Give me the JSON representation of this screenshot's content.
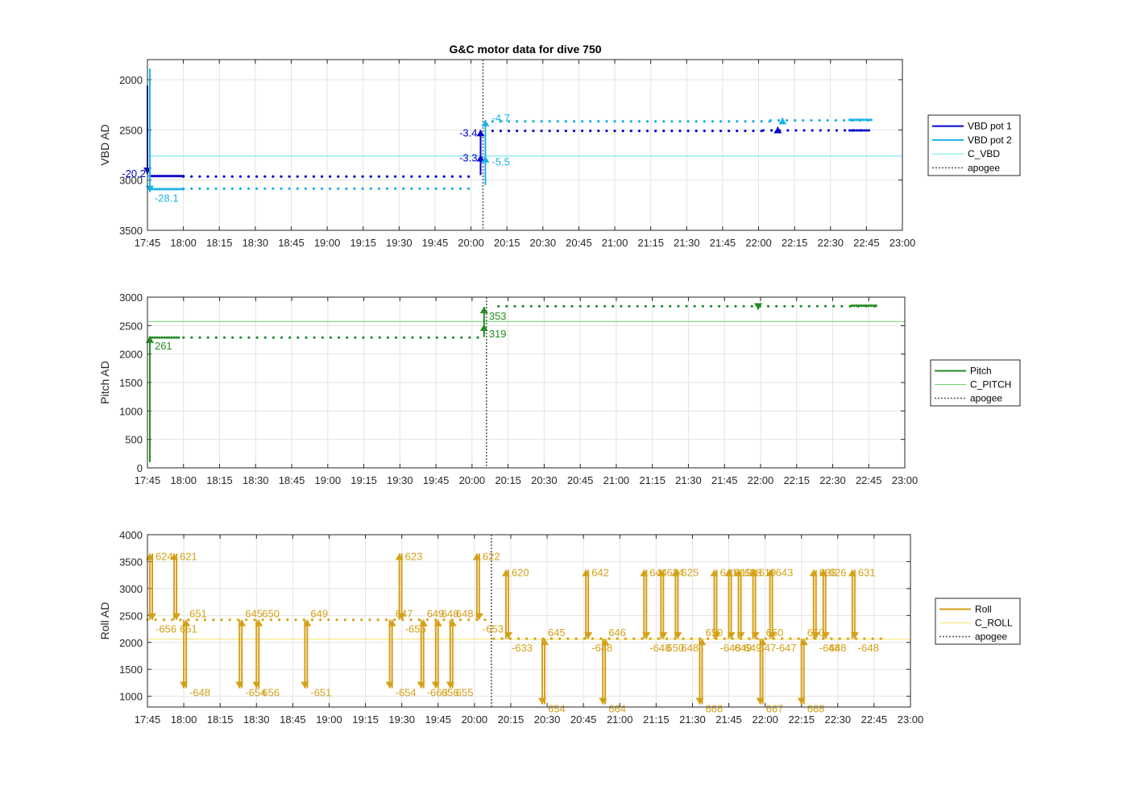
{
  "chart_data": [
    {
      "type": "line",
      "title": "G&C motor data for dive 750",
      "ylabel": "VBD AD",
      "xlabel": "",
      "x_unit": "time (HH:MM)",
      "xlim": [
        "17:45",
        "23:00"
      ],
      "ylim": [
        3500,
        1800
      ],
      "y_reversed": true,
      "y_ticks": [
        2000,
        2500,
        3000,
        3500
      ],
      "x_ticks": [
        "17:45",
        "18:00",
        "18:15",
        "18:30",
        "18:45",
        "19:00",
        "19:15",
        "19:30",
        "19:45",
        "20:00",
        "20:15",
        "20:30",
        "20:45",
        "21:00",
        "21:15",
        "21:30",
        "21:45",
        "22:00",
        "22:15",
        "22:30",
        "22:45",
        "23:00"
      ],
      "grid": true,
      "legend_position": "right",
      "legend": [
        "VBD pot 1",
        "VBD pot 2",
        "C_VBD",
        "apogee"
      ],
      "colors": {
        "pot1": "#0000cc",
        "pot2": "#1ab2e6",
        "c_line": "#66e0f0",
        "apogee": "#555555"
      },
      "apogee": "20:05",
      "c_value": 2760,
      "series": [
        {
          "name": "VBD pot 1",
          "segments": [
            {
              "start": "17:46",
              "end": "18:00",
              "value": 2960
            },
            {
              "start": "18:00",
              "end": "20:02",
              "value": 2965
            },
            {
              "start": "20:09",
              "end": "22:02",
              "value": 2510
            },
            {
              "start": "22:02",
              "end": "22:46",
              "value": 2505
            },
            {
              "start": "22:38",
              "end": "22:46",
              "value": 2505
            }
          ]
        },
        {
          "name": "VBD pot 2",
          "segments": [
            {
              "start": "17:46",
              "end": "18:00",
              "value": 3090
            },
            {
              "start": "18:00",
              "end": "20:02",
              "value": 3085
            },
            {
              "start": "20:09",
              "end": "22:05",
              "value": 2415
            },
            {
              "start": "22:05",
              "end": "22:47",
              "value": 2405
            },
            {
              "start": "22:38",
              "end": "22:47",
              "value": 2400
            }
          ]
        }
      ],
      "moves": [
        {
          "series": "VBD pot 1",
          "time": "17:45",
          "from": 2060,
          "to": 2940,
          "label": "-20.2"
        },
        {
          "series": "VBD pot 2",
          "time": "17:46",
          "from": 1890,
          "to": 3120,
          "label": "-28.1"
        },
        {
          "series": "VBD pot 1",
          "time": "20:04",
          "from": 2950,
          "to": 2750,
          "label": "-3.3"
        },
        {
          "series": "VBD pot 1",
          "time": "20:04",
          "from": 2750,
          "to": 2500,
          "label": "-3.4"
        },
        {
          "series": "VBD pot 2",
          "time": "20:06",
          "from": 3050,
          "to": 2760,
          "label": "-5.5"
        },
        {
          "series": "VBD pot 2",
          "time": "20:06",
          "from": 2760,
          "to": 2400,
          "label": "-4.7"
        },
        {
          "series": "VBD pot 1",
          "time": "22:08",
          "from": 2510,
          "to": 2470,
          "label": ""
        },
        {
          "series": "VBD pot 2",
          "time": "22:10",
          "from": 2410,
          "to": 2380,
          "label": ""
        }
      ]
    },
    {
      "type": "line",
      "title": "",
      "ylabel": "Pitch AD",
      "xlabel": "",
      "x_unit": "time (HH:MM)",
      "xlim": [
        "17:45",
        "23:00"
      ],
      "ylim": [
        0,
        3000
      ],
      "y_ticks": [
        0,
        500,
        1000,
        1500,
        2000,
        2500,
        3000
      ],
      "x_ticks": [
        "17:45",
        "18:00",
        "18:15",
        "18:30",
        "18:45",
        "19:00",
        "19:15",
        "19:30",
        "19:45",
        "20:00",
        "20:15",
        "20:30",
        "20:45",
        "21:00",
        "21:15",
        "21:30",
        "21:45",
        "22:00",
        "22:15",
        "22:30",
        "22:45",
        "23:00"
      ],
      "grid": true,
      "legend_position": "right",
      "legend": [
        "Pitch",
        "C_PITCH",
        "apogee"
      ],
      "colors": {
        "series": "#228b22",
        "c_line": "#66dd66",
        "apogee": "#555555"
      },
      "apogee": "20:06",
      "c_value": 2570,
      "series": [
        {
          "name": "Pitch",
          "segments": [
            {
              "start": "17:46",
              "end": "17:58",
              "value": 2290
            },
            {
              "start": "18:00",
              "end": "20:04",
              "value": 2290
            },
            {
              "start": "20:11",
              "end": "22:48",
              "value": 2840
            },
            {
              "start": "22:38",
              "end": "22:48",
              "value": 2850
            }
          ]
        }
      ],
      "moves": [
        {
          "series": "Pitch",
          "time": "17:46",
          "from": 100,
          "to": 2310,
          "label": "261"
        },
        {
          "series": "Pitch",
          "time": "20:05",
          "from": 2300,
          "to": 2520,
          "label": "319"
        },
        {
          "series": "Pitch",
          "time": "20:05",
          "from": 2520,
          "to": 2830,
          "label": "353"
        },
        {
          "series": "Pitch",
          "time": "21:59",
          "from": 2850,
          "to": 2780,
          "label": ""
        }
      ]
    },
    {
      "type": "line",
      "title": "",
      "ylabel": "Roll AD",
      "xlabel": "",
      "x_unit": "time (HH:MM)",
      "xlim": [
        "17:45",
        "23:00"
      ],
      "ylim": [
        800,
        4000
      ],
      "y_ticks": [
        1000,
        1500,
        2000,
        2500,
        3000,
        3500,
        4000
      ],
      "x_ticks": [
        "17:45",
        "18:00",
        "18:15",
        "18:30",
        "18:45",
        "19:00",
        "19:15",
        "19:30",
        "19:45",
        "20:00",
        "20:15",
        "20:30",
        "20:45",
        "21:00",
        "21:15",
        "21:30",
        "21:45",
        "22:00",
        "22:15",
        "22:30",
        "22:45",
        "23:00"
      ],
      "grid": true,
      "legend_position": "right",
      "legend": [
        "Roll",
        "C_ROLL",
        "apogee"
      ],
      "colors": {
        "series": "#d4a017",
        "c_line": "#f2e36b",
        "apogee": "#555555"
      },
      "apogee": "20:07",
      "c_value": 2060,
      "series": [
        {
          "name": "Roll",
          "segments": [
            {
              "start": "17:45",
              "end": "20:05",
              "value": 2420
            },
            {
              "start": "20:08",
              "end": "22:48",
              "value": 2070
            }
          ]
        }
      ],
      "spikes": [
        {
          "time": "17:46",
          "peak": 3650,
          "up_label": "624",
          "down_label": "-656"
        },
        {
          "time": "17:56",
          "peak": 3650,
          "up_label": "621",
          "down_label": "651"
        },
        {
          "time": "18:00",
          "peak": 1150,
          "up_label": "651",
          "down_label": "-648"
        },
        {
          "time": "18:23",
          "peak": 1150,
          "up_label": "645",
          "down_label": "-654"
        },
        {
          "time": "18:30",
          "peak": 1150,
          "up_label": "650",
          "down_label": "656"
        },
        {
          "time": "18:50",
          "peak": 1150,
          "up_label": "649",
          "down_label": "-651"
        },
        {
          "time": "19:25",
          "peak": 1150,
          "up_label": "647",
          "down_label": "-654"
        },
        {
          "time": "19:29",
          "peak": 3650,
          "up_label": "623",
          "down_label": "-656"
        },
        {
          "time": "19:38",
          "peak": 1150,
          "up_label": "649",
          "down_label": "-663"
        },
        {
          "time": "19:44",
          "peak": 1150,
          "up_label": "648",
          "down_label": "656"
        },
        {
          "time": "19:50",
          "peak": 1150,
          "up_label": "648",
          "down_label": "655"
        },
        {
          "time": "20:01",
          "peak": 3650,
          "up_label": "622",
          "down_label": "-653"
        },
        {
          "time": "20:13",
          "peak": 3350,
          "up_label": "620",
          "down_label": "-633"
        },
        {
          "time": "20:28",
          "peak": 850,
          "up_label": "645",
          "down_label": "654"
        },
        {
          "time": "20:46",
          "peak": 3350,
          "up_label": "642",
          "down_label": "-648"
        },
        {
          "time": "20:53",
          "peak": 850,
          "up_label": "646",
          "down_label": "664"
        },
        {
          "time": "21:10",
          "peak": 3350,
          "up_label": "644",
          "down_label": "-648"
        },
        {
          "time": "21:17",
          "peak": 3350,
          "up_label": "624",
          "down_label": "650"
        },
        {
          "time": "21:23",
          "peak": 3350,
          "up_label": "625",
          "down_label": "648"
        },
        {
          "time": "21:33",
          "peak": 850,
          "up_label": "650",
          "down_label": "666"
        },
        {
          "time": "21:39",
          "peak": 3350,
          "up_label": "641",
          "down_label": "-648"
        },
        {
          "time": "21:45",
          "peak": 3350,
          "up_label": "619",
          "down_label": "649"
        },
        {
          "time": "21:49",
          "peak": 3350,
          "up_label": "628",
          "down_label": "649"
        },
        {
          "time": "21:55",
          "peak": 3350,
          "up_label": "619",
          "down_label": "647"
        },
        {
          "time": "21:58",
          "peak": 850,
          "up_label": "650",
          "down_label": "667"
        },
        {
          "time": "22:02",
          "peak": 3350,
          "up_label": "643",
          "down_label": "-647"
        },
        {
          "time": "22:15",
          "peak": 850,
          "up_label": "650",
          "down_label": "668"
        },
        {
          "time": "22:20",
          "peak": 3350,
          "up_label": "638",
          "down_label": "-648"
        },
        {
          "time": "22:24",
          "peak": 3350,
          "up_label": "626",
          "down_label": "648"
        },
        {
          "time": "22:36",
          "peak": 3350,
          "up_label": "631",
          "down_label": "-648"
        }
      ]
    }
  ]
}
